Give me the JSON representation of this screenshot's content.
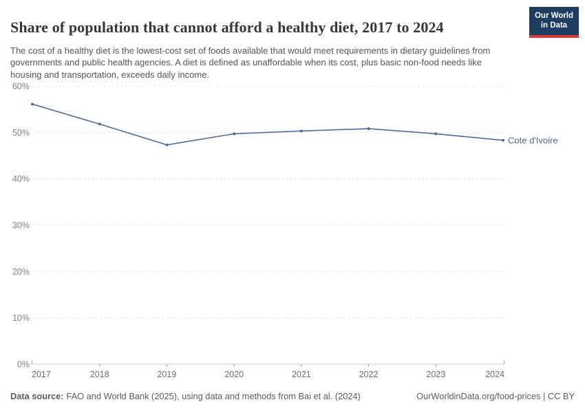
{
  "header": {
    "title": "Share of population that cannot afford a healthy diet, 2017 to 2024",
    "subtitle": "The cost of a healthy diet is the lowest-cost set of foods available that would meet requirements in dietary guidelines from governments and public health agencies. A diet is defined as unaffordable when its cost, plus basic non-food needs like housing and transportation, exceeds daily income.",
    "logo": {
      "line1": "Our World",
      "line2": "in Data",
      "background_color": "#1d3d63",
      "accent_color": "#d93a34"
    }
  },
  "chart_data": {
    "type": "line",
    "title": "Share of population that cannot afford a healthy diet, 2017 to 2024",
    "x": [
      "2017",
      "2018",
      "2019",
      "2020",
      "2021",
      "2022",
      "2023",
      "2024"
    ],
    "series": [
      {
        "name": "Cote d'Ivoire",
        "color": "#4c6a9c",
        "values": [
          56.1,
          51.8,
          47.3,
          49.7,
          50.3,
          50.8,
          49.7,
          48.3
        ]
      }
    ],
    "xlabel": "",
    "ylabel": "",
    "ylim": [
      0,
      60
    ],
    "yticks": [
      0,
      10,
      20,
      30,
      40,
      50,
      60
    ],
    "ytick_suffix": "%",
    "grid": "horizontal-dashed",
    "gridline_color": "#dcdcdc",
    "axis_color": "#c8c8c8",
    "tick_color": "#a3a3a3",
    "tick_label_color": "#6e6e6e",
    "ytick_label_color": "#7f7f7f",
    "legend_position": "end-of-line-label"
  },
  "footer": {
    "datasource_label": "Data source:",
    "datasource_text": "FAO and World Bank (2025), using data and methods from Bai et al. (2024)",
    "rights": "OurWorldinData.org/food-prices | CC BY"
  }
}
